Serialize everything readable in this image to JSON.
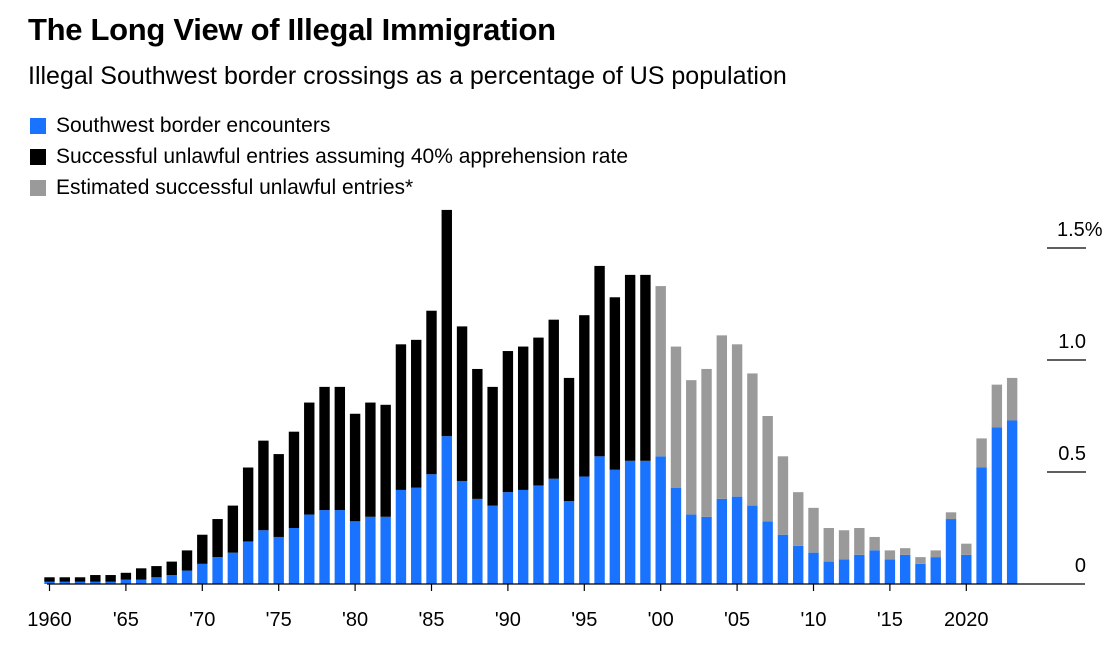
{
  "title": "The Long View of Illegal Immigration",
  "subtitle": "Illegal Southwest border crossings as a percentage of US population",
  "colors": {
    "encounters": "#1a73ff",
    "assumed": "#000000",
    "estimated": "#9a9a9a",
    "axis": "#000000"
  },
  "chart_data": {
    "type": "bar",
    "stacked": true,
    "title": "The Long View of Illegal Immigration",
    "subtitle": "Illegal Southwest border crossings as a percentage of US population",
    "legend": [
      {
        "key": "encounters",
        "label": "Southwest border encounters"
      },
      {
        "key": "assumed",
        "label": "Successful unlawful entries assuming 40% apprehension rate"
      },
      {
        "key": "estimated",
        "label": "Estimated successful unlawful entries*"
      }
    ],
    "ylim": [
      0,
      1.5
    ],
    "y_ticks": [
      {
        "value": 0,
        "label": "0"
      },
      {
        "value": 0.5,
        "label": "0.5"
      },
      {
        "value": 1.0,
        "label": "1.0"
      },
      {
        "value": 1.5,
        "label": "1.5%"
      }
    ],
    "x_ticks": [
      {
        "year": 1960,
        "label": "1960"
      },
      {
        "year": 1965,
        "label": "'65"
      },
      {
        "year": 1970,
        "label": "'70"
      },
      {
        "year": 1975,
        "label": "'75"
      },
      {
        "year": 1980,
        "label": "'80"
      },
      {
        "year": 1985,
        "label": "'85"
      },
      {
        "year": 1990,
        "label": "'90"
      },
      {
        "year": 1995,
        "label": "'95"
      },
      {
        "year": 2000,
        "label": "'00"
      },
      {
        "year": 2005,
        "label": "'05"
      },
      {
        "year": 2010,
        "label": "'10"
      },
      {
        "year": 2015,
        "label": "'15"
      },
      {
        "year": 2020,
        "label": "2020"
      }
    ],
    "years": [
      1960,
      1961,
      1962,
      1963,
      1964,
      1965,
      1966,
      1967,
      1968,
      1969,
      1970,
      1971,
      1972,
      1973,
      1974,
      1975,
      1976,
      1977,
      1978,
      1979,
      1980,
      1981,
      1982,
      1983,
      1984,
      1985,
      1986,
      1987,
      1988,
      1989,
      1990,
      1991,
      1992,
      1993,
      1994,
      1995,
      1996,
      1997,
      1998,
      1999,
      2000,
      2001,
      2002,
      2003,
      2004,
      2005,
      2006,
      2007,
      2008,
      2009,
      2010,
      2011,
      2012,
      2013,
      2014,
      2015,
      2016,
      2017,
      2018,
      2019,
      2020,
      2021,
      2022,
      2023
    ],
    "series": [
      {
        "name": "Southwest border encounters",
        "key": "encounters",
        "values": [
          0.01,
          0.01,
          0.01,
          0.01,
          0.01,
          0.02,
          0.02,
          0.03,
          0.04,
          0.06,
          0.09,
          0.12,
          0.14,
          0.19,
          0.24,
          0.21,
          0.25,
          0.31,
          0.33,
          0.33,
          0.28,
          0.3,
          0.3,
          0.42,
          0.43,
          0.49,
          0.66,
          0.46,
          0.38,
          0.35,
          0.41,
          0.42,
          0.44,
          0.47,
          0.37,
          0.48,
          0.57,
          0.51,
          0.55,
          0.55,
          0.57,
          0.43,
          0.31,
          0.3,
          0.38,
          0.39,
          0.35,
          0.28,
          0.22,
          0.17,
          0.14,
          0.1,
          0.11,
          0.13,
          0.15,
          0.11,
          0.13,
          0.09,
          0.12,
          0.29,
          0.13,
          0.52,
          0.7,
          0.73
        ]
      },
      {
        "name": "Successful unlawful entries assuming 40% apprehension rate",
        "key": "assumed",
        "values": [
          0.02,
          0.02,
          0.02,
          0.03,
          0.03,
          0.03,
          0.05,
          0.05,
          0.06,
          0.09,
          0.13,
          0.17,
          0.21,
          0.33,
          0.4,
          0.37,
          0.43,
          0.5,
          0.55,
          0.55,
          0.48,
          0.51,
          0.5,
          0.65,
          0.66,
          0.73,
          1.01,
          0.69,
          0.58,
          0.53,
          0.63,
          0.64,
          0.66,
          0.71,
          0.55,
          0.72,
          0.85,
          0.77,
          0.83,
          0.83,
          0,
          0,
          0,
          0,
          0,
          0,
          0,
          0,
          0,
          0,
          0,
          0,
          0,
          0,
          0,
          0,
          0,
          0,
          0,
          0,
          0,
          0,
          0,
          0
        ]
      },
      {
        "name": "Estimated successful unlawful entries*",
        "key": "estimated",
        "values": [
          0,
          0,
          0,
          0,
          0,
          0,
          0,
          0,
          0,
          0,
          0,
          0,
          0,
          0,
          0,
          0,
          0,
          0,
          0,
          0,
          0,
          0,
          0,
          0,
          0,
          0,
          0,
          0,
          0,
          0,
          0,
          0,
          0,
          0,
          0,
          0,
          0,
          0,
          0,
          0,
          0.76,
          0.63,
          0.6,
          0.66,
          0.73,
          0.68,
          0.59,
          0.47,
          0.35,
          0.24,
          0.2,
          0.15,
          0.13,
          0.12,
          0.06,
          0.04,
          0.03,
          0.03,
          0.03,
          0.03,
          0.05,
          0.13,
          0.19,
          0.19
        ]
      }
    ]
  }
}
